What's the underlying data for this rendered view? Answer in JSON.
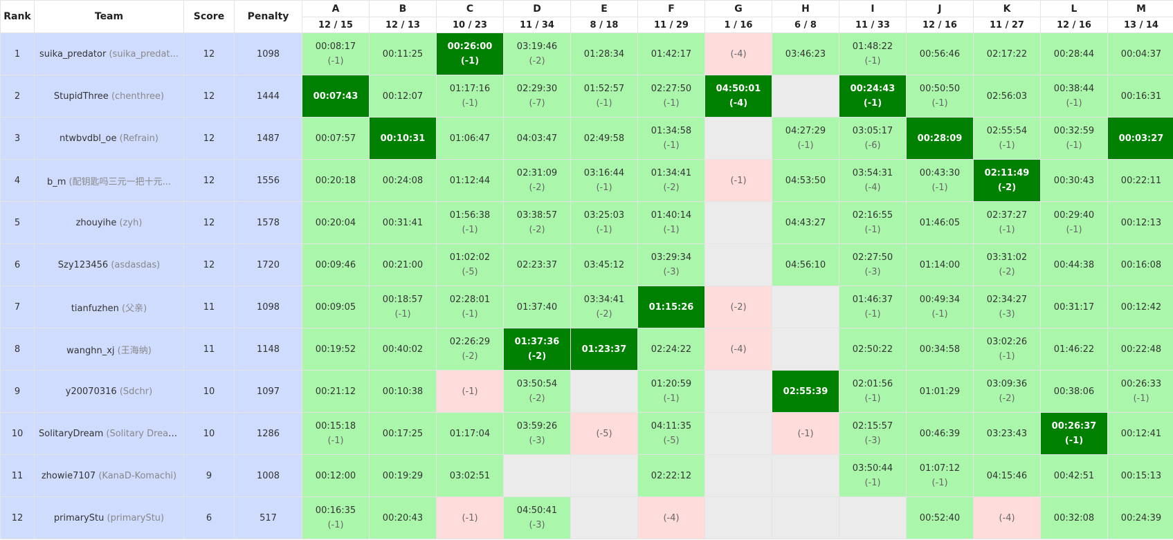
{
  "header": {
    "rank": "Rank",
    "team": "Team",
    "score": "Score",
    "penalty": "Penalty",
    "problems": [
      {
        "letter": "A",
        "stat": "12 / 15"
      },
      {
        "letter": "B",
        "stat": "12 / 13"
      },
      {
        "letter": "C",
        "stat": "10 / 23"
      },
      {
        "letter": "D",
        "stat": "11 / 34"
      },
      {
        "letter": "E",
        "stat": "8 / 18"
      },
      {
        "letter": "F",
        "stat": "11 / 29"
      },
      {
        "letter": "G",
        "stat": "1 / 16"
      },
      {
        "letter": "H",
        "stat": "6 / 8"
      },
      {
        "letter": "I",
        "stat": "11 / 33"
      },
      {
        "letter": "J",
        "stat": "12 / 16"
      },
      {
        "letter": "K",
        "stat": "11 / 27"
      },
      {
        "letter": "L",
        "stat": "12 / 16"
      },
      {
        "letter": "M",
        "stat": "13 / 14"
      }
    ]
  },
  "colors": {
    "accepted": "#aaf6ab",
    "first_blood": "#008000",
    "wrong": "#ffdcdc",
    "no_attempt": "#ebebeb",
    "left_columns": "#cfdcfe"
  },
  "rows": [
    {
      "rank": "1",
      "name": "suika_predator",
      "alias": "(suika_predat...",
      "score": "12",
      "penalty": "1098",
      "cells": [
        {
          "s": "ac",
          "t": "00:08:17",
          "p": "(-1)"
        },
        {
          "s": "ac",
          "t": "00:11:25",
          "p": ""
        },
        {
          "s": "fb",
          "t": "00:26:00",
          "p": "(-1)"
        },
        {
          "s": "ac",
          "t": "03:19:46",
          "p": "(-2)"
        },
        {
          "s": "ac",
          "t": "01:28:34",
          "p": ""
        },
        {
          "s": "ac",
          "t": "01:42:17",
          "p": ""
        },
        {
          "s": "wa",
          "t": "",
          "p": "(-4)"
        },
        {
          "s": "ac",
          "t": "03:46:23",
          "p": ""
        },
        {
          "s": "ac",
          "t": "01:48:22",
          "p": "(-1)"
        },
        {
          "s": "ac",
          "t": "00:56:46",
          "p": ""
        },
        {
          "s": "ac",
          "t": "02:17:22",
          "p": ""
        },
        {
          "s": "ac",
          "t": "00:28:44",
          "p": ""
        },
        {
          "s": "ac",
          "t": "00:04:37",
          "p": ""
        }
      ]
    },
    {
      "rank": "2",
      "name": "StupidThree",
      "alias": "(chenthree)",
      "score": "12",
      "penalty": "1444",
      "cells": [
        {
          "s": "fb",
          "t": "00:07:43",
          "p": ""
        },
        {
          "s": "ac",
          "t": "00:12:07",
          "p": ""
        },
        {
          "s": "ac",
          "t": "01:17:16",
          "p": "(-1)"
        },
        {
          "s": "ac",
          "t": "02:29:30",
          "p": "(-7)"
        },
        {
          "s": "ac",
          "t": "01:52:57",
          "p": "(-1)"
        },
        {
          "s": "ac",
          "t": "02:27:50",
          "p": "(-1)"
        },
        {
          "s": "fb",
          "t": "04:50:01",
          "p": "(-4)"
        },
        {
          "s": "none",
          "t": "",
          "p": ""
        },
        {
          "s": "fb",
          "t": "00:24:43",
          "p": "(-1)"
        },
        {
          "s": "ac",
          "t": "00:50:50",
          "p": "(-1)"
        },
        {
          "s": "ac",
          "t": "02:56:03",
          "p": ""
        },
        {
          "s": "ac",
          "t": "00:38:44",
          "p": "(-1)"
        },
        {
          "s": "ac",
          "t": "00:16:31",
          "p": ""
        }
      ]
    },
    {
      "rank": "3",
      "name": "ntwbvdbl_oe",
      "alias": "(Refrain)",
      "score": "12",
      "penalty": "1487",
      "cells": [
        {
          "s": "ac",
          "t": "00:07:57",
          "p": ""
        },
        {
          "s": "fb",
          "t": "00:10:31",
          "p": ""
        },
        {
          "s": "ac",
          "t": "01:06:47",
          "p": ""
        },
        {
          "s": "ac",
          "t": "04:03:47",
          "p": ""
        },
        {
          "s": "ac",
          "t": "02:49:58",
          "p": ""
        },
        {
          "s": "ac",
          "t": "01:34:58",
          "p": "(-1)"
        },
        {
          "s": "none",
          "t": "",
          "p": ""
        },
        {
          "s": "ac",
          "t": "04:27:29",
          "p": "(-1)"
        },
        {
          "s": "ac",
          "t": "03:05:17",
          "p": "(-6)"
        },
        {
          "s": "fb",
          "t": "00:28:09",
          "p": ""
        },
        {
          "s": "ac",
          "t": "02:55:54",
          "p": "(-1)"
        },
        {
          "s": "ac",
          "t": "00:32:59",
          "p": "(-1)"
        },
        {
          "s": "fb",
          "t": "00:03:27",
          "p": ""
        }
      ]
    },
    {
      "rank": "4",
      "name": "b_m",
      "alias": "(配钥匙吗三元一把十元...",
      "score": "12",
      "penalty": "1556",
      "cells": [
        {
          "s": "ac",
          "t": "00:20:18",
          "p": ""
        },
        {
          "s": "ac",
          "t": "00:24:08",
          "p": ""
        },
        {
          "s": "ac",
          "t": "01:12:44",
          "p": ""
        },
        {
          "s": "ac",
          "t": "02:31:09",
          "p": "(-2)"
        },
        {
          "s": "ac",
          "t": "03:16:44",
          "p": "(-1)"
        },
        {
          "s": "ac",
          "t": "01:34:41",
          "p": "(-2)"
        },
        {
          "s": "wa",
          "t": "",
          "p": "(-1)"
        },
        {
          "s": "ac",
          "t": "04:53:50",
          "p": ""
        },
        {
          "s": "ac",
          "t": "03:54:31",
          "p": "(-4)"
        },
        {
          "s": "ac",
          "t": "00:43:30",
          "p": "(-1)"
        },
        {
          "s": "fb",
          "t": "02:11:49",
          "p": "(-2)"
        },
        {
          "s": "ac",
          "t": "00:30:43",
          "p": ""
        },
        {
          "s": "ac",
          "t": "00:22:11",
          "p": ""
        }
      ]
    },
    {
      "rank": "5",
      "name": "zhouyihe",
      "alias": "(zyh)",
      "score": "12",
      "penalty": "1578",
      "cells": [
        {
          "s": "ac",
          "t": "00:20:04",
          "p": ""
        },
        {
          "s": "ac",
          "t": "00:31:41",
          "p": ""
        },
        {
          "s": "ac",
          "t": "01:56:38",
          "p": "(-1)"
        },
        {
          "s": "ac",
          "t": "03:38:57",
          "p": "(-2)"
        },
        {
          "s": "ac",
          "t": "03:25:03",
          "p": "(-1)"
        },
        {
          "s": "ac",
          "t": "01:40:14",
          "p": "(-1)"
        },
        {
          "s": "none",
          "t": "",
          "p": ""
        },
        {
          "s": "ac",
          "t": "04:43:27",
          "p": ""
        },
        {
          "s": "ac",
          "t": "02:16:55",
          "p": "(-1)"
        },
        {
          "s": "ac",
          "t": "01:46:05",
          "p": ""
        },
        {
          "s": "ac",
          "t": "02:37:27",
          "p": "(-1)"
        },
        {
          "s": "ac",
          "t": "00:29:40",
          "p": "(-1)"
        },
        {
          "s": "ac",
          "t": "00:12:13",
          "p": ""
        }
      ]
    },
    {
      "rank": "6",
      "name": "Szy123456",
      "alias": "(asdasdas)",
      "score": "12",
      "penalty": "1720",
      "cells": [
        {
          "s": "ac",
          "t": "00:09:46",
          "p": ""
        },
        {
          "s": "ac",
          "t": "00:21:00",
          "p": ""
        },
        {
          "s": "ac",
          "t": "01:02:02",
          "p": "(-5)"
        },
        {
          "s": "ac",
          "t": "02:23:37",
          "p": ""
        },
        {
          "s": "ac",
          "t": "03:45:12",
          "p": ""
        },
        {
          "s": "ac",
          "t": "03:29:34",
          "p": "(-3)"
        },
        {
          "s": "none",
          "t": "",
          "p": ""
        },
        {
          "s": "ac",
          "t": "04:56:10",
          "p": ""
        },
        {
          "s": "ac",
          "t": "02:27:50",
          "p": "(-3)"
        },
        {
          "s": "ac",
          "t": "01:14:00",
          "p": ""
        },
        {
          "s": "ac",
          "t": "03:31:02",
          "p": "(-2)"
        },
        {
          "s": "ac",
          "t": "00:44:38",
          "p": ""
        },
        {
          "s": "ac",
          "t": "00:16:08",
          "p": ""
        }
      ]
    },
    {
      "rank": "7",
      "name": "tianfuzhen",
      "alias": "(父亲)",
      "score": "11",
      "penalty": "1098",
      "cells": [
        {
          "s": "ac",
          "t": "00:09:05",
          "p": ""
        },
        {
          "s": "ac",
          "t": "00:18:57",
          "p": "(-1)"
        },
        {
          "s": "ac",
          "t": "02:28:01",
          "p": "(-1)"
        },
        {
          "s": "ac",
          "t": "01:37:40",
          "p": ""
        },
        {
          "s": "ac",
          "t": "03:34:41",
          "p": "(-2)"
        },
        {
          "s": "fb",
          "t": "01:15:26",
          "p": ""
        },
        {
          "s": "wa",
          "t": "",
          "p": "(-2)"
        },
        {
          "s": "none",
          "t": "",
          "p": ""
        },
        {
          "s": "ac",
          "t": "01:46:37",
          "p": "(-1)"
        },
        {
          "s": "ac",
          "t": "00:49:34",
          "p": "(-1)"
        },
        {
          "s": "ac",
          "t": "02:34:27",
          "p": "(-3)"
        },
        {
          "s": "ac",
          "t": "00:31:17",
          "p": ""
        },
        {
          "s": "ac",
          "t": "00:12:42",
          "p": ""
        }
      ]
    },
    {
      "rank": "8",
      "name": "wanghn_xj",
      "alias": "(王海纳)",
      "score": "11",
      "penalty": "1148",
      "cells": [
        {
          "s": "ac",
          "t": "00:19:52",
          "p": ""
        },
        {
          "s": "ac",
          "t": "00:40:02",
          "p": ""
        },
        {
          "s": "ac",
          "t": "02:26:29",
          "p": "(-2)"
        },
        {
          "s": "fb",
          "t": "01:37:36",
          "p": "(-2)"
        },
        {
          "s": "fb",
          "t": "01:23:37",
          "p": ""
        },
        {
          "s": "ac",
          "t": "02:24:22",
          "p": ""
        },
        {
          "s": "wa",
          "t": "",
          "p": "(-4)"
        },
        {
          "s": "none",
          "t": "",
          "p": ""
        },
        {
          "s": "ac",
          "t": "02:50:22",
          "p": ""
        },
        {
          "s": "ac",
          "t": "00:34:58",
          "p": ""
        },
        {
          "s": "ac",
          "t": "03:02:26",
          "p": "(-1)"
        },
        {
          "s": "ac",
          "t": "01:46:22",
          "p": ""
        },
        {
          "s": "ac",
          "t": "00:22:48",
          "p": ""
        }
      ]
    },
    {
      "rank": "9",
      "name": "y20070316",
      "alias": "(Sdchr)",
      "score": "10",
      "penalty": "1097",
      "cells": [
        {
          "s": "ac",
          "t": "00:21:12",
          "p": ""
        },
        {
          "s": "ac",
          "t": "00:10:38",
          "p": ""
        },
        {
          "s": "wa",
          "t": "",
          "p": "(-1)"
        },
        {
          "s": "ac",
          "t": "03:50:54",
          "p": "(-2)"
        },
        {
          "s": "none",
          "t": "",
          "p": ""
        },
        {
          "s": "ac",
          "t": "01:20:59",
          "p": "(-1)"
        },
        {
          "s": "none",
          "t": "",
          "p": ""
        },
        {
          "s": "fb",
          "t": "02:55:39",
          "p": ""
        },
        {
          "s": "ac",
          "t": "02:01:56",
          "p": "(-1)"
        },
        {
          "s": "ac",
          "t": "01:01:29",
          "p": ""
        },
        {
          "s": "ac",
          "t": "03:09:36",
          "p": "(-2)"
        },
        {
          "s": "ac",
          "t": "00:38:06",
          "p": ""
        },
        {
          "s": "ac",
          "t": "00:26:33",
          "p": "(-1)"
        }
      ]
    },
    {
      "rank": "10",
      "name": "SolitaryDream",
      "alias": "(Solitary Dream)",
      "score": "10",
      "penalty": "1286",
      "cells": [
        {
          "s": "ac",
          "t": "00:15:18",
          "p": "(-1)"
        },
        {
          "s": "ac",
          "t": "00:17:25",
          "p": ""
        },
        {
          "s": "ac",
          "t": "01:17:04",
          "p": ""
        },
        {
          "s": "ac",
          "t": "03:59:26",
          "p": "(-3)"
        },
        {
          "s": "wa",
          "t": "",
          "p": "(-5)"
        },
        {
          "s": "ac",
          "t": "04:11:35",
          "p": "(-5)"
        },
        {
          "s": "none",
          "t": "",
          "p": ""
        },
        {
          "s": "wa",
          "t": "",
          "p": "(-1)"
        },
        {
          "s": "ac",
          "t": "02:15:57",
          "p": "(-3)"
        },
        {
          "s": "ac",
          "t": "00:46:39",
          "p": ""
        },
        {
          "s": "ac",
          "t": "03:23:43",
          "p": ""
        },
        {
          "s": "fb",
          "t": "00:26:37",
          "p": "(-1)"
        },
        {
          "s": "ac",
          "t": "00:12:41",
          "p": ""
        }
      ]
    },
    {
      "rank": "11",
      "name": "zhowie7107",
      "alias": "(KanaD-Komachi)",
      "score": "9",
      "penalty": "1008",
      "cells": [
        {
          "s": "ac",
          "t": "00:12:00",
          "p": ""
        },
        {
          "s": "ac",
          "t": "00:19:29",
          "p": ""
        },
        {
          "s": "ac",
          "t": "03:02:51",
          "p": ""
        },
        {
          "s": "none",
          "t": "",
          "p": ""
        },
        {
          "s": "none",
          "t": "",
          "p": ""
        },
        {
          "s": "ac",
          "t": "02:22:12",
          "p": ""
        },
        {
          "s": "none",
          "t": "",
          "p": ""
        },
        {
          "s": "none",
          "t": "",
          "p": ""
        },
        {
          "s": "ac",
          "t": "03:50:44",
          "p": "(-1)"
        },
        {
          "s": "ac",
          "t": "01:07:12",
          "p": "(-1)"
        },
        {
          "s": "ac",
          "t": "04:15:46",
          "p": ""
        },
        {
          "s": "ac",
          "t": "00:42:51",
          "p": ""
        },
        {
          "s": "ac",
          "t": "00:15:13",
          "p": ""
        }
      ]
    },
    {
      "rank": "12",
      "name": "primaryStu",
      "alias": "(primaryStu)",
      "score": "6",
      "penalty": "517",
      "cells": [
        {
          "s": "ac",
          "t": "00:16:35",
          "p": "(-1)"
        },
        {
          "s": "ac",
          "t": "00:20:43",
          "p": ""
        },
        {
          "s": "wa",
          "t": "",
          "p": "(-1)"
        },
        {
          "s": "ac",
          "t": "04:50:41",
          "p": "(-3)"
        },
        {
          "s": "none",
          "t": "",
          "p": ""
        },
        {
          "s": "wa",
          "t": "",
          "p": "(-4)"
        },
        {
          "s": "none",
          "t": "",
          "p": ""
        },
        {
          "s": "none",
          "t": "",
          "p": ""
        },
        {
          "s": "none",
          "t": "",
          "p": ""
        },
        {
          "s": "ac",
          "t": "00:52:40",
          "p": ""
        },
        {
          "s": "wa",
          "t": "",
          "p": "(-4)"
        },
        {
          "s": "ac",
          "t": "00:32:08",
          "p": ""
        },
        {
          "s": "ac",
          "t": "00:24:39",
          "p": ""
        }
      ]
    }
  ]
}
